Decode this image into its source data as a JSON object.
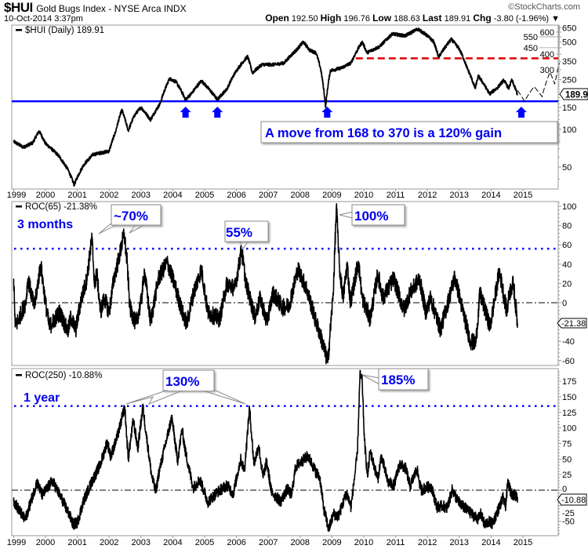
{
  "header": {
    "symbol": "$HUI",
    "title": "Gold Bugs Index - NYSE Arca  INDX",
    "copyright": "©StockCharts.com",
    "datetime": "10-Oct-2014 3:37pm",
    "open_label": "Open",
    "open": "192.50",
    "high_label": "High",
    "high": "196.76",
    "low_label": "Low",
    "low": "188.63",
    "last_label": "Last",
    "last": "189.91",
    "chg_label": "Chg",
    "chg": "-3.80 (-1.96%)",
    "chg_arrow": "▼"
  },
  "colors": {
    "price": "#000000",
    "support": "#0000ff",
    "target": "#e00000",
    "annotation": "#0000ee"
  },
  "chart_data": [
    {
      "type": "line",
      "title": "$HUI (Daily) 189.91",
      "scale": "log",
      "ylim": [
        30,
        700
      ],
      "yticks": [
        650,
        600,
        550,
        500,
        450,
        400,
        350,
        300,
        250,
        150,
        100,
        50
      ],
      "xticks": [
        "1999",
        "2000",
        "2001",
        "2002",
        "2003",
        "2004",
        "2005",
        "2006",
        "2007",
        "2008",
        "2009",
        "2010",
        "2011",
        "2012",
        "2013",
        "2014",
        "2015"
      ],
      "last_value": "189.91",
      "series": [
        {
          "name": "$HUI",
          "points": [
            [
              1999.0,
              80
            ],
            [
              1999.3,
              72
            ],
            [
              1999.6,
              78
            ],
            [
              1999.8,
              97
            ],
            [
              2000.0,
              77
            ],
            [
              2000.4,
              62
            ],
            [
              2000.7,
              48
            ],
            [
              2000.9,
              36
            ],
            [
              2001.2,
              52
            ],
            [
              2001.5,
              63
            ],
            [
              2002.0,
              67
            ],
            [
              2002.2,
              95
            ],
            [
              2002.4,
              143
            ],
            [
              2002.6,
              97
            ],
            [
              2002.8,
              130
            ],
            [
              2003.0,
              150
            ],
            [
              2003.3,
              119
            ],
            [
              2003.6,
              160
            ],
            [
              2003.9,
              255
            ],
            [
              2004.1,
              240
            ],
            [
              2004.4,
              173
            ],
            [
              2004.6,
              195
            ],
            [
              2004.9,
              245
            ],
            [
              2005.1,
              215
            ],
            [
              2005.4,
              173
            ],
            [
              2005.7,
              210
            ],
            [
              2006.0,
              295
            ],
            [
              2006.35,
              383
            ],
            [
              2006.5,
              283
            ],
            [
              2006.8,
              330
            ],
            [
              2007.2,
              330
            ],
            [
              2007.5,
              340
            ],
            [
              2007.9,
              435
            ],
            [
              2008.1,
              500
            ],
            [
              2008.3,
              430
            ],
            [
              2008.5,
              410
            ],
            [
              2008.65,
              300
            ],
            [
              2008.8,
              150
            ],
            [
              2008.95,
              295
            ],
            [
              2009.3,
              310
            ],
            [
              2009.6,
              340
            ],
            [
              2009.95,
              500
            ],
            [
              2010.1,
              410
            ],
            [
              2010.5,
              460
            ],
            [
              2010.9,
              580
            ],
            [
              2011.3,
              560
            ],
            [
              2011.7,
              635
            ],
            [
              2012.0,
              560
            ],
            [
              2012.2,
              500
            ],
            [
              2012.35,
              378
            ],
            [
              2012.75,
              525
            ],
            [
              2013.0,
              440
            ],
            [
              2013.25,
              308
            ],
            [
              2013.5,
              212
            ],
            [
              2013.6,
              267
            ],
            [
              2013.95,
              192
            ],
            [
              2014.2,
              215
            ],
            [
              2014.4,
              248
            ],
            [
              2014.55,
              212
            ],
            [
              2014.65,
              248
            ],
            [
              2014.83,
              189.91
            ]
          ]
        },
        {
          "name": "projection",
          "points": [
            [
              2014.83,
              205
            ],
            [
              2015.05,
              168
            ],
            [
              2015.35,
              220
            ],
            [
              2015.6,
              183
            ],
            [
              2015.85,
              287
            ],
            [
              2016.0,
              230
            ],
            [
              2016.15,
              340
            ]
          ]
        }
      ],
      "lines": {
        "support": 168,
        "target": 370,
        "target_start": 2009.75
      },
      "arrows": [
        2004.4,
        2005.4,
        2008.85,
        2014.95
      ],
      "annotation": "A move from 168 to 370 is a 120% gain"
    },
    {
      "type": "line",
      "title": "ROC(65) -21.38%",
      "ylim": [
        -65,
        105
      ],
      "yticks": [
        100,
        80,
        60,
        40,
        20,
        0,
        -40,
        -60
      ],
      "last_value": "-21.38",
      "reference_level": 56,
      "label": "3 months",
      "callouts": [
        "~70%",
        "55%",
        "100%"
      ],
      "series": [
        {
          "name": "ROC(65)",
          "points": [
            [
              1999.0,
              25
            ],
            [
              1999.05,
              -25
            ],
            [
              1999.38,
              0
            ],
            [
              1999.45,
              25
            ],
            [
              1999.65,
              -5
            ],
            [
              1999.85,
              40
            ],
            [
              2000.0,
              0
            ],
            [
              2000.12,
              -25
            ],
            [
              2000.45,
              -10
            ],
            [
              2000.7,
              -30
            ],
            [
              2000.8,
              -15
            ],
            [
              2000.95,
              -28
            ],
            [
              2001.1,
              0
            ],
            [
              2001.3,
              25
            ],
            [
              2001.46,
              67
            ],
            [
              2001.55,
              15
            ],
            [
              2001.6,
              35
            ],
            [
              2001.73,
              -10
            ],
            [
              2001.85,
              5
            ],
            [
              2002.0,
              -10
            ],
            [
              2002.15,
              25
            ],
            [
              2002.3,
              45
            ],
            [
              2002.47,
              72
            ],
            [
              2002.57,
              40
            ],
            [
              2002.65,
              -5
            ],
            [
              2002.84,
              -22
            ],
            [
              2003.0,
              0
            ],
            [
              2003.11,
              33
            ],
            [
              2003.3,
              -20
            ],
            [
              2003.55,
              25
            ],
            [
              2003.82,
              42
            ],
            [
              2004.05,
              20
            ],
            [
              2004.3,
              -10
            ],
            [
              2004.44,
              -22
            ],
            [
              2004.65,
              10
            ],
            [
              2004.9,
              35
            ],
            [
              2005.1,
              -10
            ],
            [
              2005.47,
              -17
            ],
            [
              2005.7,
              20
            ],
            [
              2005.95,
              15
            ],
            [
              2006.16,
              55
            ],
            [
              2006.3,
              20
            ],
            [
              2006.58,
              -15
            ],
            [
              2006.75,
              5
            ],
            [
              2006.95,
              -20
            ],
            [
              2007.15,
              10
            ],
            [
              2007.45,
              -5
            ],
            [
              2007.65,
              -3
            ],
            [
              2007.93,
              35
            ],
            [
              2008.2,
              15
            ],
            [
              2008.5,
              -20
            ],
            [
              2008.65,
              -35
            ],
            [
              2008.87,
              -62
            ],
            [
              2009.04,
              10
            ],
            [
              2009.14,
              100
            ],
            [
              2009.24,
              35
            ],
            [
              2009.35,
              5
            ],
            [
              2009.48,
              40
            ],
            [
              2009.58,
              0
            ],
            [
              2009.83,
              43
            ],
            [
              2009.95,
              5
            ],
            [
              2010.2,
              -17
            ],
            [
              2010.44,
              30
            ],
            [
              2010.6,
              5
            ],
            [
              2010.94,
              25
            ],
            [
              2011.26,
              -8
            ],
            [
              2011.45,
              10
            ],
            [
              2011.75,
              25
            ],
            [
              2011.95,
              -10
            ],
            [
              2012.1,
              5
            ],
            [
              2012.41,
              -28
            ],
            [
              2012.6,
              -5
            ],
            [
              2012.86,
              27
            ],
            [
              2013.05,
              0
            ],
            [
              2013.35,
              -40
            ],
            [
              2013.52,
              -42
            ],
            [
              2013.65,
              10
            ],
            [
              2013.97,
              -25
            ],
            [
              2014.26,
              33
            ],
            [
              2014.5,
              -10
            ],
            [
              2014.57,
              10
            ],
            [
              2014.7,
              20
            ],
            [
              2014.83,
              -21.38
            ]
          ]
        }
      ]
    },
    {
      "type": "line",
      "title": "ROC(250) -10.88%",
      "ylim": [
        -72,
        195
      ],
      "yticks": [
        175,
        150,
        125,
        100,
        75,
        50,
        25,
        0,
        -25,
        -50
      ],
      "xticks": [
        "1999",
        "2000",
        "2001",
        "2002",
        "2003",
        "2004",
        "2005",
        "2006",
        "2007",
        "2008",
        "2009",
        "2010",
        "2011",
        "2012",
        "2013",
        "2014",
        "2015"
      ],
      "last_value": "-10.88",
      "reference_level": 135,
      "label": "1 year",
      "callouts": [
        "130%",
        "185%"
      ],
      "series": [
        {
          "name": "ROC(250)",
          "points": [
            [
              1999.0,
              -17
            ],
            [
              1999.36,
              -48
            ],
            [
              1999.73,
              13
            ],
            [
              1999.9,
              -8
            ],
            [
              2000.22,
              15
            ],
            [
              2000.5,
              -13
            ],
            [
              2000.74,
              -38
            ],
            [
              2000.87,
              -55
            ],
            [
              2001.0,
              -52
            ],
            [
              2001.2,
              -17
            ],
            [
              2001.45,
              13
            ],
            [
              2001.73,
              42
            ],
            [
              2001.94,
              78
            ],
            [
              2002.05,
              54
            ],
            [
              2002.27,
              88
            ],
            [
              2002.49,
              134
            ],
            [
              2002.6,
              50
            ],
            [
              2002.76,
              113
            ],
            [
              2002.9,
              67
            ],
            [
              2003.06,
              134
            ],
            [
              2003.17,
              88
            ],
            [
              2003.33,
              25
            ],
            [
              2003.47,
              -4
            ],
            [
              2003.55,
              25
            ],
            [
              2003.74,
              67
            ],
            [
              2003.97,
              117
            ],
            [
              2004.15,
              47
            ],
            [
              2004.29,
              98
            ],
            [
              2004.4,
              61
            ],
            [
              2004.64,
              4
            ],
            [
              2004.85,
              17
            ],
            [
              2005.1,
              -19
            ],
            [
              2005.4,
              -3
            ],
            [
              2005.71,
              8
            ],
            [
              2005.9,
              -6
            ],
            [
              2006.13,
              50
            ],
            [
              2006.25,
              31
            ],
            [
              2006.41,
              132
            ],
            [
              2006.55,
              42
            ],
            [
              2006.7,
              72
            ],
            [
              2006.83,
              21
            ],
            [
              2006.95,
              46
            ],
            [
              2007.1,
              -3
            ],
            [
              2007.39,
              -18
            ],
            [
              2007.6,
              2
            ],
            [
              2007.73,
              -8
            ],
            [
              2007.86,
              38
            ],
            [
              2008.25,
              55
            ],
            [
              2008.5,
              29
            ],
            [
              2008.62,
              20
            ],
            [
              2008.74,
              -29
            ],
            [
              2008.9,
              -63
            ],
            [
              2009.05,
              -38
            ],
            [
              2009.2,
              -42
            ],
            [
              2009.46,
              -4
            ],
            [
              2009.6,
              -27
            ],
            [
              2009.7,
              17
            ],
            [
              2009.8,
              59
            ],
            [
              2009.88,
              185
            ],
            [
              2009.95,
              176
            ],
            [
              2010.02,
              80
            ],
            [
              2010.12,
              21
            ],
            [
              2010.2,
              63
            ],
            [
              2010.44,
              17
            ],
            [
              2010.55,
              55
            ],
            [
              2010.76,
              13
            ],
            [
              2010.95,
              8
            ],
            [
              2011.13,
              42
            ],
            [
              2011.33,
              34
            ],
            [
              2011.45,
              6
            ],
            [
              2011.67,
              34
            ],
            [
              2011.8,
              0
            ],
            [
              2011.95,
              4
            ],
            [
              2012.12,
              6
            ],
            [
              2012.3,
              -27
            ],
            [
              2012.49,
              -25
            ],
            [
              2012.62,
              -29
            ],
            [
              2012.78,
              1
            ],
            [
              2012.95,
              -17
            ],
            [
              2013.1,
              -25
            ],
            [
              2013.43,
              -40
            ],
            [
              2013.6,
              -46
            ],
            [
              2013.68,
              -38
            ],
            [
              2013.8,
              -56
            ],
            [
              2013.92,
              -50
            ],
            [
              2014.04,
              -54
            ],
            [
              2014.21,
              -33
            ],
            [
              2014.38,
              -12
            ],
            [
              2014.45,
              -27
            ],
            [
              2014.53,
              13
            ],
            [
              2014.62,
              -4
            ],
            [
              2014.74,
              -8
            ],
            [
              2014.83,
              -10.88
            ]
          ]
        }
      ]
    }
  ]
}
